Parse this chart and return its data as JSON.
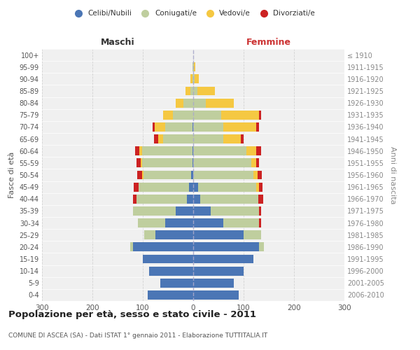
{
  "age_groups": [
    "0-4",
    "5-9",
    "10-14",
    "15-19",
    "20-24",
    "25-29",
    "30-34",
    "35-39",
    "40-44",
    "45-49",
    "50-54",
    "55-59",
    "60-64",
    "65-69",
    "70-74",
    "75-79",
    "80-84",
    "85-89",
    "90-94",
    "95-99",
    "100+"
  ],
  "birth_years": [
    "2006-2010",
    "2001-2005",
    "1996-2000",
    "1991-1995",
    "1986-1990",
    "1981-1985",
    "1976-1980",
    "1971-1975",
    "1966-1970",
    "1961-1965",
    "1956-1960",
    "1951-1955",
    "1946-1950",
    "1941-1945",
    "1936-1940",
    "1931-1935",
    "1926-1930",
    "1921-1925",
    "1916-1920",
    "1911-1915",
    "≤ 1910"
  ],
  "maschi": {
    "celibi": [
      90,
      65,
      88,
      100,
      120,
      75,
      55,
      35,
      12,
      8,
      4,
      2,
      2,
      0,
      1,
      0,
      0,
      0,
      0,
      0,
      0
    ],
    "coniugati": [
      0,
      0,
      0,
      0,
      5,
      22,
      55,
      85,
      100,
      100,
      95,
      100,
      100,
      60,
      55,
      40,
      20,
      5,
      2,
      1,
      0
    ],
    "vedovi": [
      0,
      0,
      0,
      0,
      0,
      0,
      0,
      0,
      0,
      0,
      2,
      2,
      5,
      10,
      20,
      20,
      15,
      10,
      3,
      1,
      0
    ],
    "divorziati": [
      0,
      0,
      0,
      0,
      0,
      0,
      0,
      0,
      8,
      10,
      10,
      8,
      8,
      8,
      5,
      0,
      0,
      0,
      0,
      0,
      0
    ]
  },
  "femmine": {
    "nubili": [
      90,
      80,
      100,
      120,
      130,
      100,
      60,
      35,
      14,
      10,
      0,
      0,
      0,
      0,
      0,
      0,
      0,
      0,
      0,
      0,
      0
    ],
    "coniugate": [
      0,
      0,
      0,
      0,
      10,
      35,
      70,
      95,
      115,
      115,
      120,
      115,
      105,
      60,
      60,
      55,
      25,
      8,
      3,
      2,
      0
    ],
    "vedove": [
      0,
      0,
      0,
      0,
      0,
      0,
      0,
      0,
      0,
      5,
      8,
      10,
      20,
      35,
      65,
      75,
      55,
      35,
      8,
      2,
      0
    ],
    "divorziate": [
      0,
      0,
      0,
      0,
      0,
      0,
      5,
      5,
      10,
      8,
      8,
      5,
      10,
      5,
      5,
      5,
      0,
      0,
      0,
      0,
      0
    ]
  },
  "colors": {
    "celibi_nubili": "#4B76B5",
    "coniugati": "#BFCE9E",
    "vedovi": "#F5C842",
    "divorziati": "#CC2222"
  },
  "xlim": 300,
  "title": "Popolazione per età, sesso e stato civile - 2011",
  "subtitle": "COMUNE DI ASCEA (SA) - Dati ISTAT 1° gennaio 2011 - Elaborazione TUTTITALIA.IT",
  "ylabel": "Fasce di età",
  "ylabel_right": "Anni di nascita",
  "xlabel_maschi": "Maschi",
  "xlabel_femmine": "Femmine",
  "bg_color": "#f0f0f0",
  "grid_color": "#d0d0d0"
}
